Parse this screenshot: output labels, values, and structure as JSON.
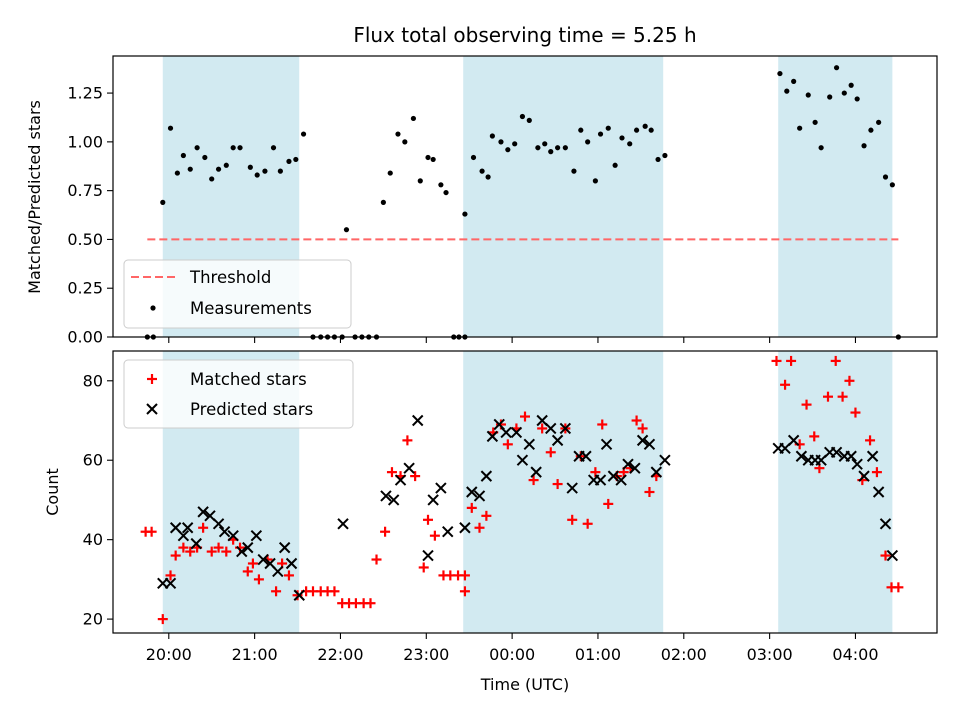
{
  "chart_data": [
    {
      "type": "scatter",
      "title": "Flux total observing time = 5.25 h",
      "ylabel": "Matched/Predicted stars",
      "xlabel": "",
      "ylim": [
        0,
        1.44
      ],
      "yticks": [
        0.0,
        0.25,
        0.5,
        0.75,
        1.0,
        1.25
      ],
      "ytick_labels": [
        "0.00",
        "0.25",
        "0.50",
        "0.75",
        "1.00",
        "1.25"
      ],
      "x_unit": "hours since 00:00 UTC",
      "xlim": [
        -4.65,
        4.95
      ],
      "shaded_intervals": [
        [
          -4.07,
          -2.48
        ],
        [
          -0.57,
          1.76
        ],
        [
          3.1,
          4.43
        ]
      ],
      "shade_color": "#add8e6",
      "threshold": {
        "label": "Threshold",
        "y": 0.5,
        "x_range": [
          -4.25,
          4.5
        ],
        "color": "#ff6666"
      },
      "legend": {
        "position": "lower-left",
        "entries": [
          "Threshold",
          "Measurements"
        ]
      },
      "series": [
        {
          "name": "Measurements",
          "color": "#000000",
          "points": [
            [
              -4.25,
              0.0
            ],
            [
              -4.18,
              0.0
            ],
            [
              -4.07,
              0.69
            ],
            [
              -3.98,
              1.07
            ],
            [
              -3.9,
              0.84
            ],
            [
              -3.83,
              0.93
            ],
            [
              -3.75,
              0.86
            ],
            [
              -3.67,
              0.97
            ],
            [
              -3.58,
              0.92
            ],
            [
              -3.5,
              0.81
            ],
            [
              -3.42,
              0.86
            ],
            [
              -3.33,
              0.88
            ],
            [
              -3.25,
              0.97
            ],
            [
              -3.17,
              0.97
            ],
            [
              -3.05,
              0.87
            ],
            [
              -2.97,
              0.83
            ],
            [
              -2.88,
              0.85
            ],
            [
              -2.78,
              0.97
            ],
            [
              -2.7,
              0.85
            ],
            [
              -2.6,
              0.9
            ],
            [
              -2.52,
              0.91
            ],
            [
              -2.43,
              1.04
            ],
            [
              -2.32,
              0.0
            ],
            [
              -2.23,
              0.0
            ],
            [
              -2.15,
              0.0
            ],
            [
              -2.07,
              0.0
            ],
            [
              -1.98,
              0.0
            ],
            [
              -1.93,
              0.55
            ],
            [
              -1.83,
              0.0
            ],
            [
              -1.75,
              0.0
            ],
            [
              -1.67,
              0.0
            ],
            [
              -1.58,
              0.0
            ],
            [
              -1.5,
              0.69
            ],
            [
              -1.42,
              0.84
            ],
            [
              -1.33,
              1.04
            ],
            [
              -1.25,
              1.0
            ],
            [
              -1.15,
              1.12
            ],
            [
              -1.07,
              0.8
            ],
            [
              -0.98,
              0.92
            ],
            [
              -0.92,
              0.91
            ],
            [
              -0.83,
              0.78
            ],
            [
              -0.77,
              0.74
            ],
            [
              -0.68,
              0.0
            ],
            [
              -0.62,
              0.0
            ],
            [
              -0.55,
              0.0
            ],
            [
              -0.55,
              0.63
            ],
            [
              -0.45,
              0.92
            ],
            [
              -0.35,
              0.85
            ],
            [
              -0.28,
              0.82
            ],
            [
              -0.23,
              1.03
            ],
            [
              -0.13,
              1.0
            ],
            [
              -0.05,
              0.96
            ],
            [
              0.03,
              0.99
            ],
            [
              0.12,
              1.13
            ],
            [
              0.2,
              1.11
            ],
            [
              0.3,
              0.97
            ],
            [
              0.38,
              0.99
            ],
            [
              0.45,
              0.95
            ],
            [
              0.53,
              0.97
            ],
            [
              0.62,
              0.97
            ],
            [
              0.72,
              0.85
            ],
            [
              0.8,
              1.06
            ],
            [
              0.88,
              1.0
            ],
            [
              0.97,
              0.8
            ],
            [
              1.03,
              1.04
            ],
            [
              1.12,
              1.07
            ],
            [
              1.2,
              0.88
            ],
            [
              1.28,
              1.02
            ],
            [
              1.37,
              0.99
            ],
            [
              1.45,
              1.06
            ],
            [
              1.55,
              1.08
            ],
            [
              1.62,
              1.06
            ],
            [
              1.7,
              0.91
            ],
            [
              1.78,
              0.93
            ],
            [
              3.12,
              1.35
            ],
            [
              3.2,
              1.26
            ],
            [
              3.28,
              1.31
            ],
            [
              3.35,
              1.07
            ],
            [
              3.45,
              1.24
            ],
            [
              3.53,
              1.1
            ],
            [
              3.6,
              0.97
            ],
            [
              3.7,
              1.23
            ],
            [
              3.78,
              1.38
            ],
            [
              3.87,
              1.25
            ],
            [
              3.95,
              1.29
            ],
            [
              4.02,
              1.22
            ],
            [
              4.1,
              0.98
            ],
            [
              4.18,
              1.06
            ],
            [
              4.27,
              1.1
            ],
            [
              4.35,
              0.82
            ],
            [
              4.43,
              0.78
            ],
            [
              4.5,
              0.0
            ]
          ]
        }
      ]
    },
    {
      "type": "scatter",
      "title": "",
      "ylabel": "Count",
      "xlabel": "Time (UTC)",
      "ylim": [
        16.5,
        87.5
      ],
      "yticks": [
        20,
        40,
        60,
        80
      ],
      "ytick_labels": [
        "20",
        "40",
        "60",
        "80"
      ],
      "x_unit": "hours since 00:00 UTC",
      "xlim": [
        -4.65,
        4.95
      ],
      "xticks": [
        -4,
        -3,
        -2,
        -1,
        0,
        1,
        2,
        3,
        4
      ],
      "xtick_labels": [
        "20:00",
        "21:00",
        "22:00",
        "23:00",
        "00:00",
        "01:00",
        "02:00",
        "03:00",
        "04:00"
      ],
      "shaded_intervals": [
        [
          -4.07,
          -2.48
        ],
        [
          -0.57,
          1.76
        ],
        [
          3.1,
          4.43
        ]
      ],
      "shade_color": "#add8e6",
      "legend": {
        "position": "top-left",
        "entries": [
          "Matched stars",
          "Predicted stars"
        ]
      },
      "series": [
        {
          "name": "Matched stars",
          "marker": "plus",
          "color": "#ff0000",
          "points": [
            [
              -4.27,
              42
            ],
            [
              -4.2,
              42
            ],
            [
              -4.07,
              20
            ],
            [
              -3.98,
              31
            ],
            [
              -3.92,
              36
            ],
            [
              -3.83,
              38
            ],
            [
              -3.75,
              37
            ],
            [
              -3.67,
              38
            ],
            [
              -3.6,
              43
            ],
            [
              -3.5,
              37
            ],
            [
              -3.42,
              38
            ],
            [
              -3.33,
              37
            ],
            [
              -3.25,
              40
            ],
            [
              -3.17,
              38
            ],
            [
              -3.08,
              32
            ],
            [
              -3.02,
              34
            ],
            [
              -2.95,
              30
            ],
            [
              -2.85,
              35
            ],
            [
              -2.75,
              27
            ],
            [
              -2.68,
              34
            ],
            [
              -2.6,
              31
            ],
            [
              -2.5,
              26
            ],
            [
              -2.4,
              27
            ],
            [
              -2.32,
              27
            ],
            [
              -2.23,
              27
            ],
            [
              -2.15,
              27
            ],
            [
              -2.07,
              27
            ],
            [
              -1.98,
              24
            ],
            [
              -1.9,
              24
            ],
            [
              -1.82,
              24
            ],
            [
              -1.73,
              24
            ],
            [
              -1.65,
              24
            ],
            [
              -1.58,
              35
            ],
            [
              -1.48,
              42
            ],
            [
              -1.4,
              57
            ],
            [
              -1.3,
              56
            ],
            [
              -1.22,
              65
            ],
            [
              -1.13,
              56
            ],
            [
              -1.03,
              33
            ],
            [
              -0.98,
              45
            ],
            [
              -0.9,
              41
            ],
            [
              -0.8,
              31
            ],
            [
              -0.72,
              31
            ],
            [
              -0.63,
              31
            ],
            [
              -0.55,
              31
            ],
            [
              -0.55,
              27
            ],
            [
              -0.47,
              48
            ],
            [
              -0.38,
              43
            ],
            [
              -0.3,
              46
            ],
            [
              -0.22,
              67
            ],
            [
              -0.13,
              69
            ],
            [
              -0.05,
              64
            ],
            [
              0.05,
              68
            ],
            [
              0.15,
              71
            ],
            [
              0.25,
              55
            ],
            [
              0.35,
              68
            ],
            [
              0.45,
              62
            ],
            [
              0.53,
              54
            ],
            [
              0.62,
              68
            ],
            [
              0.7,
              45
            ],
            [
              0.8,
              61
            ],
            [
              0.88,
              44
            ],
            [
              0.97,
              57
            ],
            [
              1.05,
              69
            ],
            [
              1.12,
              49
            ],
            [
              1.22,
              56
            ],
            [
              1.3,
              57
            ],
            [
              1.38,
              58
            ],
            [
              1.45,
              70
            ],
            [
              1.52,
              68
            ],
            [
              1.6,
              52
            ],
            [
              1.68,
              56
            ],
            [
              3.08,
              85
            ],
            [
              3.18,
              79
            ],
            [
              3.25,
              85
            ],
            [
              3.35,
              64
            ],
            [
              3.43,
              74
            ],
            [
              3.52,
              66
            ],
            [
              3.58,
              58
            ],
            [
              3.68,
              76
            ],
            [
              3.77,
              85
            ],
            [
              3.85,
              76
            ],
            [
              3.93,
              80
            ],
            [
              4.0,
              72
            ],
            [
              4.08,
              55
            ],
            [
              4.17,
              65
            ],
            [
              4.25,
              57
            ],
            [
              4.35,
              36
            ],
            [
              4.42,
              28
            ],
            [
              4.5,
              28
            ]
          ]
        },
        {
          "name": "Predicted stars",
          "marker": "x",
          "color": "#000000",
          "points": [
            [
              -4.07,
              29
            ],
            [
              -3.98,
              29
            ],
            [
              -3.92,
              43
            ],
            [
              -3.83,
              41
            ],
            [
              -3.78,
              43
            ],
            [
              -3.68,
              39
            ],
            [
              -3.6,
              47
            ],
            [
              -3.52,
              46
            ],
            [
              -3.42,
              44
            ],
            [
              -3.35,
              42
            ],
            [
              -3.25,
              41
            ],
            [
              -3.15,
              37
            ],
            [
              -3.08,
              38
            ],
            [
              -2.98,
              41
            ],
            [
              -2.9,
              35
            ],
            [
              -2.82,
              34
            ],
            [
              -2.73,
              32
            ],
            [
              -2.65,
              38
            ],
            [
              -2.57,
              34
            ],
            [
              -2.48,
              26
            ],
            [
              -1.97,
              44
            ],
            [
              -1.47,
              51
            ],
            [
              -1.38,
              50
            ],
            [
              -1.3,
              55
            ],
            [
              -1.2,
              58
            ],
            [
              -1.1,
              70
            ],
            [
              -0.98,
              36
            ],
            [
              -0.92,
              50
            ],
            [
              -0.83,
              53
            ],
            [
              -0.75,
              42
            ],
            [
              -0.55,
              43
            ],
            [
              -0.47,
              52
            ],
            [
              -0.38,
              51
            ],
            [
              -0.3,
              56
            ],
            [
              -0.23,
              66
            ],
            [
              -0.15,
              69
            ],
            [
              -0.07,
              67
            ],
            [
              0.05,
              67
            ],
            [
              0.12,
              60
            ],
            [
              0.2,
              64
            ],
            [
              0.28,
              57
            ],
            [
              0.35,
              70
            ],
            [
              0.45,
              68
            ],
            [
              0.53,
              65
            ],
            [
              0.62,
              68
            ],
            [
              0.7,
              53
            ],
            [
              0.78,
              61
            ],
            [
              0.86,
              61
            ],
            [
              0.95,
              55
            ],
            [
              1.03,
              55
            ],
            [
              1.1,
              64
            ],
            [
              1.18,
              56
            ],
            [
              1.27,
              55
            ],
            [
              1.35,
              59
            ],
            [
              1.43,
              58
            ],
            [
              1.52,
              65
            ],
            [
              1.6,
              64
            ],
            [
              1.68,
              57
            ],
            [
              1.78,
              60
            ],
            [
              3.1,
              63
            ],
            [
              3.18,
              63
            ],
            [
              3.28,
              65
            ],
            [
              3.37,
              61
            ],
            [
              3.45,
              60
            ],
            [
              3.53,
              60
            ],
            [
              3.6,
              60
            ],
            [
              3.7,
              62
            ],
            [
              3.78,
              62
            ],
            [
              3.87,
              61
            ],
            [
              3.95,
              61
            ],
            [
              4.02,
              59
            ],
            [
              4.1,
              56
            ],
            [
              4.2,
              61
            ],
            [
              4.27,
              52
            ],
            [
              4.35,
              44
            ],
            [
              4.43,
              36
            ]
          ]
        }
      ]
    }
  ]
}
